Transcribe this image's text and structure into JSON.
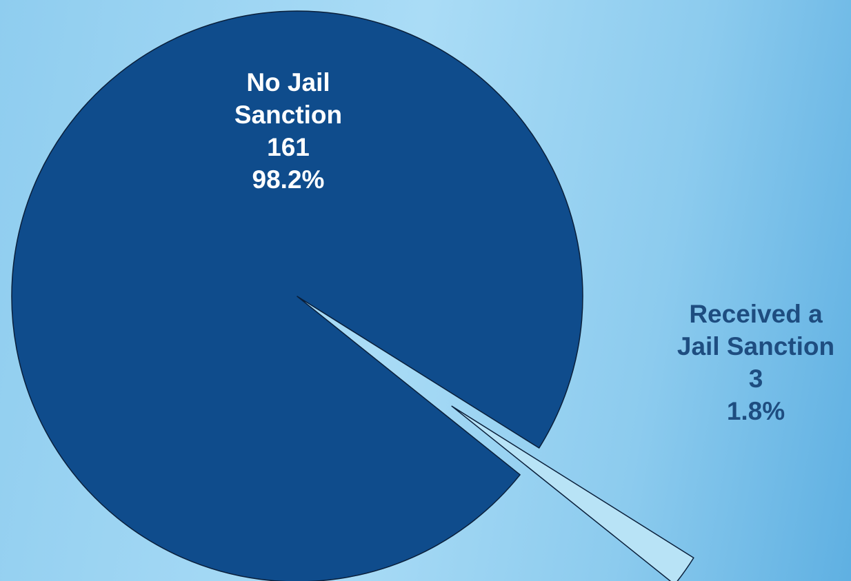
{
  "chart_data": {
    "type": "pie",
    "slices": [
      {
        "label_lines": [
          "No Jail",
          "Sanction"
        ],
        "value": 161,
        "value_text": "161",
        "percent_text": "98.2%",
        "color": "#0f4c8c",
        "label_color": "#ffffff",
        "exploded": false
      },
      {
        "label_lines": [
          "Received a",
          "Jail Sanction"
        ],
        "value": 3,
        "value_text": "3",
        "percent_text": "1.8%",
        "color": "#b8e3f6",
        "label_color": "#1e4d80",
        "exploded": true
      }
    ],
    "legend": "none",
    "title": ""
  }
}
